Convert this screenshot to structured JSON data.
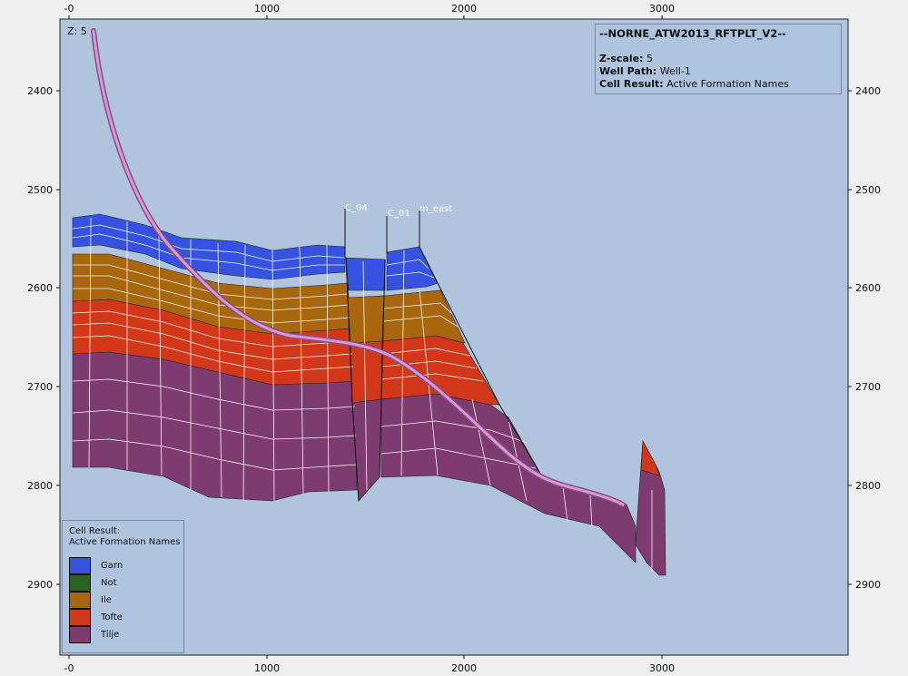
{
  "viewport": {
    "z_label": "Z: 5",
    "x_ticks": [
      "-0",
      "1000",
      "2000",
      "3000"
    ],
    "y_ticks": [
      "2400",
      "2500",
      "2600",
      "2700",
      "2800",
      "2900"
    ],
    "background_color": "#b0c4de"
  },
  "info": {
    "title": "--NORNE_ATW2013_RFTPLT_V2--",
    "zscale_label": "Z-scale:",
    "zscale_value": "5",
    "wellpath_label": "Well Path:",
    "wellpath_value": "Well-1",
    "cellresult_label": "Cell Result:",
    "cellresult_value": "Active Formation Names"
  },
  "faults": [
    {
      "label": "C_04"
    },
    {
      "label": "C_01"
    },
    {
      "label": "m_east"
    }
  ],
  "legend": {
    "title_line1": "Cell Result:",
    "title_line2": "Active Formation Names",
    "items": [
      {
        "label": "Garn",
        "color": "#3552e0"
      },
      {
        "label": "Not",
        "color": "#2a6322"
      },
      {
        "label": "Ile",
        "color": "#a8670c"
      },
      {
        "label": "Tofte",
        "color": "#d2371a"
      },
      {
        "label": "Tilje",
        "color": "#7e3b70"
      }
    ]
  },
  "colors": {
    "garn": "#3552e0",
    "ile": "#a8670c",
    "tofte": "#d2371a",
    "tilje": "#7e3b70",
    "well": "#c77bc0"
  }
}
